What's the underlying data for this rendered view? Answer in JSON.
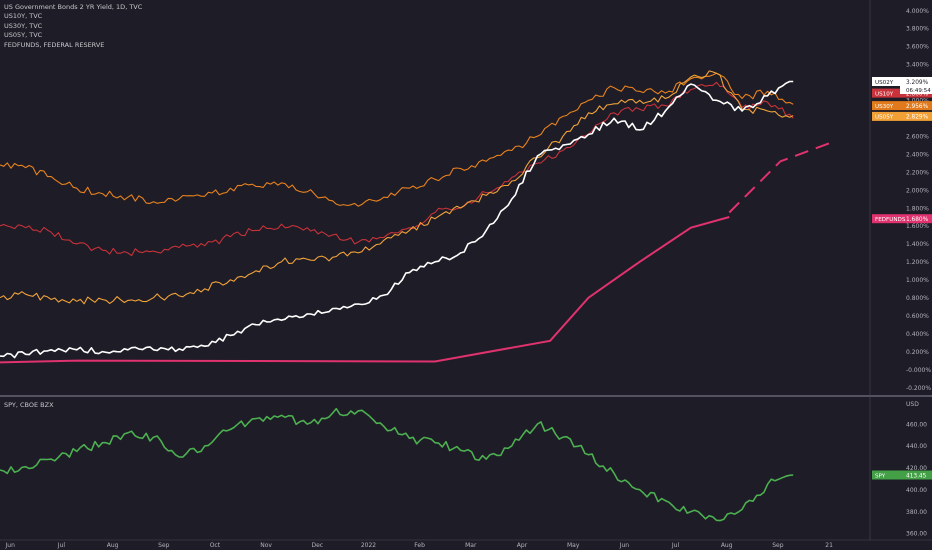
{
  "legend": {
    "header": "US Government Bonds 2 YR Yield, 1D, TVC",
    "items": [
      "US10Y, TVC",
      "US30Y, TVC",
      "US05Y, TVC",
      "FEDFUNDS, FEDERAL RESERVE"
    ],
    "bottom": "SPY, CBOE BZX"
  },
  "chart_data": [
    {
      "type": "line",
      "title": "US Government Bonds 2 YR Yield, 1D, TVC",
      "x_ticks": [
        "Jun",
        "Jul",
        "Aug",
        "Sep",
        "Oct",
        "Nov",
        "Dec",
        "2022",
        "Feb",
        "Mar",
        "Apr",
        "May",
        "Jun",
        "Jul",
        "Aug",
        "Sep",
        "21"
      ],
      "y_ticks": [
        "-0.200%",
        "-0.000%",
        "0.200%",
        "0.400%",
        "0.600%",
        "0.800%",
        "1.000%",
        "1.200%",
        "1.400%",
        "1.600%",
        "1.800%",
        "2.000%",
        "2.200%",
        "2.400%",
        "2.600%",
        "2.800%",
        "3.000%",
        "3.200%",
        "3.400%",
        "3.600%",
        "3.800%",
        "4.000%"
      ],
      "ylim": [
        -0.25,
        4.05
      ],
      "xlim": [
        0,
        34
      ],
      "grid": false,
      "legend_position": "top-left",
      "series": [
        {
          "name": "US10Y",
          "color": "#c8323a",
          "tag": "US10Y",
          "price": "2.800%",
          "x": [
            0,
            1,
            2,
            3,
            4,
            5,
            6,
            7,
            8,
            9,
            10,
            11,
            12,
            13,
            14,
            15,
            16,
            17,
            18,
            19,
            20,
            21,
            22,
            23,
            24,
            25,
            26,
            27,
            28,
            29,
            30,
            31
          ],
          "values": [
            1.6,
            1.58,
            1.53,
            1.4,
            1.33,
            1.3,
            1.32,
            1.36,
            1.38,
            1.48,
            1.55,
            1.62,
            1.58,
            1.5,
            1.42,
            1.47,
            1.58,
            1.75,
            1.8,
            1.97,
            2.14,
            2.3,
            2.44,
            2.62,
            2.86,
            2.9,
            2.94,
            3.12,
            3.2,
            2.92,
            2.98,
            2.8
          ]
        },
        {
          "name": "US30Y",
          "color": "#e8821e",
          "tag": "US30Y",
          "price": "2.956%",
          "x": [
            0,
            1,
            2,
            3,
            4,
            5,
            6,
            7,
            8,
            9,
            10,
            11,
            12,
            13,
            14,
            15,
            16,
            17,
            18,
            19,
            20,
            21,
            22,
            23,
            24,
            25,
            26,
            27,
            28,
            29,
            30,
            31
          ],
          "values": [
            2.28,
            2.25,
            2.15,
            2.02,
            1.96,
            1.92,
            1.87,
            1.9,
            1.93,
            2.02,
            2.04,
            2.08,
            1.98,
            1.88,
            1.82,
            1.92,
            2.02,
            2.12,
            2.24,
            2.32,
            2.44,
            2.6,
            2.82,
            3.0,
            3.14,
            3.1,
            3.08,
            3.24,
            3.3,
            3.02,
            3.1,
            2.956
          ]
        },
        {
          "name": "US05Y",
          "color": "#f2a33a",
          "tag": "US05Y",
          "price": "2.829%",
          "x": [
            0,
            1,
            2,
            3,
            4,
            5,
            6,
            7,
            8,
            9,
            10,
            11,
            12,
            13,
            14,
            15,
            16,
            17,
            18,
            19,
            20,
            21,
            22,
            23,
            24,
            25,
            26,
            27,
            28,
            29,
            30,
            31
          ],
          "values": [
            0.8,
            0.84,
            0.78,
            0.76,
            0.78,
            0.77,
            0.8,
            0.82,
            0.9,
            1.0,
            1.1,
            1.2,
            1.23,
            1.25,
            1.3,
            1.44,
            1.55,
            1.68,
            1.8,
            1.94,
            2.1,
            2.36,
            2.6,
            2.86,
            2.96,
            3.0,
            3.02,
            3.26,
            3.3,
            2.9,
            2.88,
            2.829
          ]
        },
        {
          "name": "US02Y",
          "color": "#ffffff",
          "tag": "US02Y",
          "price": "3.209%",
          "countdown": "06:49:54",
          "x": [
            0,
            1,
            2,
            3,
            4,
            5,
            6,
            7,
            8,
            9,
            10,
            11,
            12,
            13,
            14,
            15,
            16,
            17,
            18,
            19,
            20,
            21,
            22,
            23,
            24,
            25,
            26,
            27,
            28,
            29,
            30,
            31
          ],
          "values": [
            0.15,
            0.17,
            0.22,
            0.22,
            0.2,
            0.22,
            0.22,
            0.23,
            0.26,
            0.38,
            0.5,
            0.55,
            0.62,
            0.68,
            0.73,
            0.83,
            1.08,
            1.2,
            1.3,
            1.55,
            1.9,
            2.38,
            2.5,
            2.62,
            2.8,
            2.67,
            2.88,
            3.18,
            3.0,
            2.88,
            3.05,
            3.209
          ]
        },
        {
          "name": "FEDFUNDS",
          "color": "#e0326e",
          "tag": "FEDFUNDS",
          "price": "1.680%",
          "x": [
            0,
            3,
            17,
            21.5,
            23,
            25,
            27,
            28.5
          ],
          "values": [
            0.08,
            0.1,
            0.09,
            0.32,
            0.8,
            1.2,
            1.58,
            1.7
          ],
          "projection_x": [
            28.5,
            30.5,
            32.5
          ],
          "projection_values": [
            1.75,
            2.32,
            2.53
          ]
        }
      ]
    },
    {
      "type": "line",
      "title": "SPY, CBOE BZX",
      "ylabel": "USD",
      "y_ticks": [
        "360.00",
        "380.00",
        "400.00",
        "420.00",
        "440.00",
        "460.00"
      ],
      "ylim": [
        354,
        482
      ],
      "xlim": [
        0,
        34
      ],
      "grid": false,
      "series": [
        {
          "name": "SPY",
          "color": "#4caf50",
          "tag": "SPY",
          "price": "413.45",
          "x": [
            0,
            1,
            2,
            3,
            4,
            5,
            6,
            7,
            8,
            9,
            10,
            11,
            12,
            13,
            14,
            15,
            16,
            17,
            18,
            19,
            20,
            21,
            22,
            23,
            24,
            25,
            26,
            27,
            28,
            29,
            30,
            31
          ],
          "values": [
            418,
            421,
            428,
            435,
            443,
            452,
            448,
            430,
            440,
            455,
            465,
            468,
            460,
            470,
            472,
            458,
            447,
            443,
            436,
            428,
            440,
            460,
            448,
            432,
            415,
            400,
            390,
            380,
            372,
            382,
            405,
            413.45
          ]
        }
      ]
    }
  ]
}
